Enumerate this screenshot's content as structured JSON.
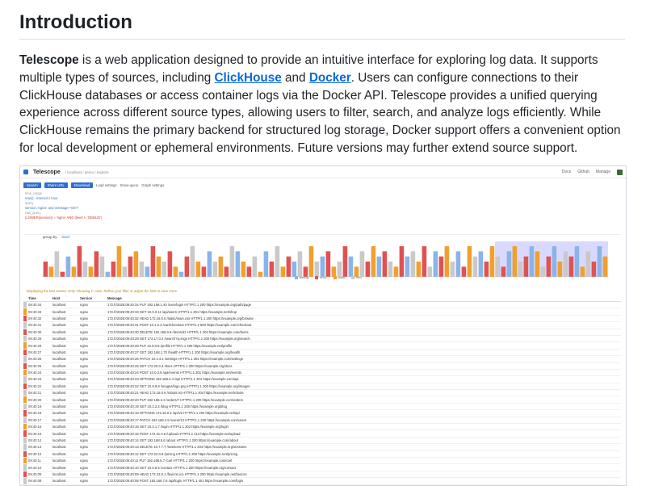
{
  "heading": "Introduction",
  "intro": {
    "name": "Telescope",
    "t1": " is a web application designed to provide an intuitive interface for exploring log data. It supports multiple types of sources, including ",
    "link1": "ClickHouse",
    "t2": " and ",
    "link2": "Docker",
    "t3": ". Users can configure connections to their ClickHouse databases or access container logs via the Docker API. Telescope provides a unified querying experience across different source types, allowing users to filter, search, and analyze logs efficiently. While ClickHouse remains the primary backend for structured log storage, Docker support offers a convenient option for local development or ephemeral environments. Future versions may further extend source support."
  },
  "screenshot": {
    "app_name": "Telescope",
    "breadcrumb": "/ localhost / demo / explore",
    "top_right": [
      "Docs",
      "Github",
      "Manage"
    ],
    "buttons": [
      "Search",
      "Share URL",
      "Download"
    ],
    "tool_links": [
      "Load settings",
      "Show query",
      "Graph settings"
    ],
    "query_label": "time_range",
    "query_text": "now() - interval 1 hour",
    "filter_label": "query",
    "filter_text": "service='nginx' and message~'GET'",
    "raw_label": "raw_query",
    "raw_text": "(LOWER(service)) = 'nginx' AND (level != 'DEBUG')",
    "group_label": "group by",
    "group_value": "level",
    "legend": [
      "debug",
      "error",
      "warn",
      "info"
    ],
    "warning": "Displaying the last events. Only 'Showing 1' rows. Refine your filter or adjust the limit to view more.",
    "columns": [
      "Time",
      "Host",
      "Service",
      "Message"
    ],
    "rows": [
      [
        "09:40:34",
        "localhost",
        "nginx",
        "172.fr/2025:09:40:34 PUT 192.168.1.40 /user/login HTTP/1.1 200 https://example.org/path/page"
      ],
      [
        "09:40:33",
        "localhost",
        "nginx",
        "172.fr/2025:09:40:33 GET 10.0.0.11 /api/users HTTP/1.1 301 https://example.net/shop"
      ],
      [
        "09:40:32",
        "localhost",
        "nginx",
        "172.fr/2025:09:40:32 HEAD 172.16.0.5 /static/main.css HTTP/1.1 200 https://example.org/browse"
      ],
      [
        "09:40:31",
        "localhost",
        "nginx",
        "172.fr/2025:09:40:31 POST 10.1.2.3 /cart/checkout HTTP/1.1 500 https://example.com/checkout"
      ],
      [
        "09:40:30",
        "localhost",
        "nginx",
        "172.fr/2025:09:40:30 DELETE 192.168.0.9 /items/42 HTTP/1.1 204 https://example.com/items"
      ],
      [
        "09:40:29",
        "localhost",
        "nginx",
        "172.fr/2025:09:40:29 GET 172.17.0.2 /search?q=logs HTTP/1.1 200 https://example.org/search"
      ],
      [
        "09:40:28",
        "localhost",
        "nginx",
        "172.fr/2025:09:40:28 PUT 10.0.0.8 /profile HTTP/1.1 400 https://example.net/profile"
      ],
      [
        "09:40:27",
        "localhost",
        "nginx",
        "172.fr/2025:09:40:27 GET 192.168.1.70 /health HTTP/1.1 200 https://example.org/health"
      ],
      [
        "09:40:26",
        "localhost",
        "nginx",
        "172.fr/2025:09:40:26 PATCH 10.4.4.1 /settings HTTP/1.1 302 https://example.com/settings"
      ],
      [
        "09:40:25",
        "localhost",
        "nginx",
        "172.fr/2025:09:40:25 GET 172.20.0.3 /docs HTTP/1.1 200 https://example.org/docs"
      ],
      [
        "09:40:24",
        "localhost",
        "nginx",
        "172.fr/2025:09:40:24 POST 10.0.3.6 /api/events HTTP/1.1 201 https://example.net/events"
      ],
      [
        "09:40:23",
        "localhost",
        "nginx",
        "172.fr/2025:09:40:23 OPTIONS 192.168.2.4 /api HTTP/1.1 204 https://example.com/api"
      ],
      [
        "09:40:22",
        "localhost",
        "nginx",
        "172.fr/2025:09:40:22 GET 10.9.9.9 /images/logo.png HTTP/1.1 200 https://example.org/images"
      ],
      [
        "09:40:21",
        "localhost",
        "nginx",
        "172.fr/2025:09:40:21 HEAD 172.18.0.6 /robots.txt HTTP/1.1 404 https://example.net/robots"
      ],
      [
        "09:40:20",
        "localhost",
        "nginx",
        "172.fr/2025:09:40:20 PUT 192.168.3.3 /orders/7 HTTP/1.1 200 https://example.com/orders"
      ],
      [
        "09:40:19",
        "localhost",
        "nginx",
        "172.fr/2025:09:40:19 GET 10.2.2.2 /blog HTTP/1.1 200 https://example.org/blog"
      ],
      [
        "09:40:18",
        "localhost",
        "nginx",
        "172.fr/2025:09:40:18 OPTIONS 172.19.0.4 /api/v2 HTTP/1.1 204 https://example.net/api"
      ],
      [
        "09:40:17",
        "localhost",
        "nginx",
        "172.fr/2025:09:40:17 PATCH 192.168.4.5 /users/12 HTTP/1.1 200 https://example.com/users"
      ],
      [
        "09:40:16",
        "localhost",
        "nginx",
        "172.fr/2025:09:40:16 GET 10.3.1.7 /login HTTP/1.1 302 https://example.org/login"
      ],
      [
        "09:40:15",
        "localhost",
        "nginx",
        "172.fr/2025:09:40:15 POST 172.21.0.8 /upload HTTP/1.1 413 https://example.net/upload"
      ],
      [
        "09:40:14",
        "localhost",
        "nginx",
        "172.fr/2025:09:40:14 GET 192.168.5.6 /about HTTP/1.1 200 https://example.com/about"
      ],
      [
        "09:40:13",
        "localhost",
        "nginx",
        "172.fr/2025:09:40:13 DELETE 10.7.7.7 /sessions HTTP/1.1 204 https://example.org/sessions"
      ],
      [
        "09:40:12",
        "localhost",
        "nginx",
        "172.fr/2025:09:40:12 GET 172.22.0.9 /pricing HTTP/1.1 200 https://example.net/pricing"
      ],
      [
        "09:40:11",
        "localhost",
        "nginx",
        "172.fr/2025:09:40:11 PUT 192.168.6.7 /cart HTTP/1.1 200 https://example.com/cart"
      ],
      [
        "09:40:10",
        "localhost",
        "nginx",
        "172.fr/2025:09:40:10 GET 10.5.5.5 /contact HTTP/1.1 200 https://example.org/contact"
      ],
      [
        "09:40:09",
        "localhost",
        "nginx",
        "172.fr/2025:09:40:09 HEAD 172.23.0.1 /favicon.ico HTTP/1.1 200 https://example.net/favicon"
      ],
      [
        "09:40:08",
        "localhost",
        "nginx",
        "172.fr/2025:09:40:08 POST 192.168.7.8 /api/login HTTP/1.1 401 https://example.com/login"
      ],
      [
        "09:40:07",
        "localhost",
        "nginx",
        "172.fr/2025:09:40:07 GET 10.6.6.6 /status HTTP/1.1 200 https://example.org/status"
      ],
      [
        "09:40:06",
        "localhost",
        "nginx",
        "172.fr/2025:09:40:06 PATCH 172.24.0.2 /account HTTP/1.1 200 https://example.net/account"
      ],
      [
        "09:40:05",
        "localhost",
        "nginx",
        "172.fr/2025:09:40:05 GET 192.168.8.9 /feed HTTP/1.1 200 https://example.com/feed"
      ]
    ],
    "row_levels": [
      "info",
      "warn",
      "error",
      "info",
      "error",
      "info",
      "warn",
      "error",
      "info",
      "error",
      "warn",
      "info",
      "error",
      "info",
      "warn",
      "info",
      "error",
      "info",
      "warn",
      "error",
      "info",
      "info",
      "error",
      "warn",
      "info",
      "error",
      "info",
      "warn",
      "info",
      "error"
    ],
    "level_colors": {
      "debug": "#8ab4e8",
      "error": "#e05252",
      "warn": "#f0a030",
      "info": "#c9c9c9"
    },
    "chart": {
      "bars": [
        3,
        2,
        5,
        1,
        4,
        2,
        6,
        3,
        2,
        5,
        4,
        1,
        3,
        6,
        2,
        4,
        5,
        3,
        2,
        6,
        4,
        3,
        5,
        2,
        1,
        4,
        6,
        3,
        2,
        5,
        3,
        4,
        2,
        6,
        5,
        3,
        2,
        4,
        1,
        5,
        3,
        6,
        2,
        4,
        3,
        5,
        2,
        6,
        3,
        4,
        5,
        2,
        3,
        6,
        4,
        2,
        5,
        3,
        6,
        4,
        5,
        3,
        2,
        6,
        4,
        5,
        3,
        6,
        2,
        5,
        4,
        6,
        3,
        5,
        2,
        6,
        4,
        5,
        3,
        6,
        4,
        2,
        5,
        6,
        3,
        4,
        6,
        5,
        2,
        4,
        6,
        3,
        5,
        4,
        6,
        2,
        5,
        3,
        6,
        4
      ],
      "bar_levels": [
        "error",
        "warn",
        "info",
        "error",
        "debug",
        "warn",
        "error",
        "info",
        "warn",
        "error",
        "info",
        "debug",
        "error",
        "warn",
        "info",
        "error",
        "warn",
        "info",
        "debug",
        "error",
        "warn",
        "info",
        "error",
        "warn",
        "debug",
        "error",
        "info",
        "warn",
        "error",
        "debug",
        "info",
        "warn",
        "error",
        "info",
        "debug",
        "warn",
        "error",
        "info",
        "warn",
        "debug",
        "error",
        "info",
        "warn",
        "error",
        "debug",
        "info",
        "error",
        "warn",
        "info",
        "debug",
        "error",
        "warn",
        "info",
        "error",
        "debug",
        "warn",
        "info",
        "error",
        "warn",
        "debug",
        "error",
        "info",
        "warn",
        "error",
        "debug",
        "info",
        "warn",
        "error",
        "info",
        "debug",
        "error",
        "warn",
        "info",
        "debug",
        "error",
        "warn",
        "info",
        "debug",
        "error",
        "warn",
        "info",
        "error",
        "debug",
        "warn",
        "info",
        "error",
        "debug",
        "warn",
        "info",
        "error",
        "debug",
        "warn",
        "info",
        "error",
        "debug",
        "warn",
        "info",
        "error",
        "debug",
        "warn"
      ]
    }
  }
}
